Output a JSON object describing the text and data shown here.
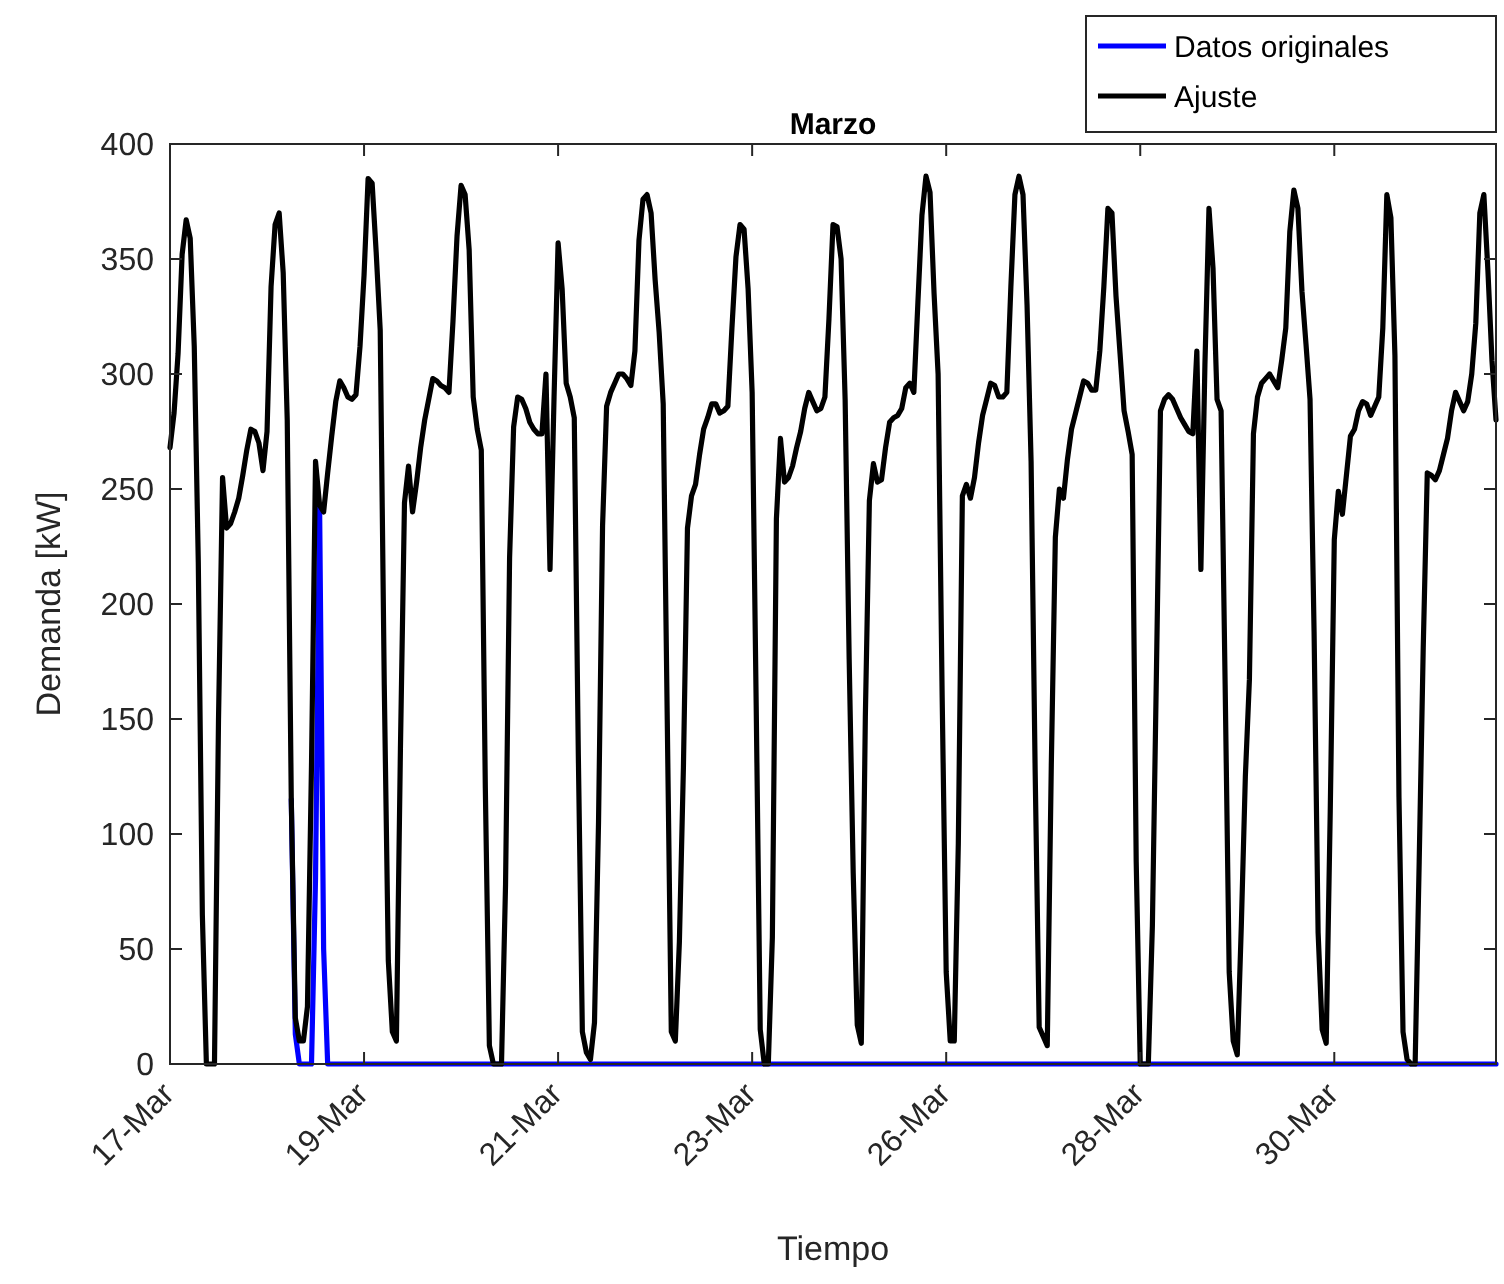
{
  "chart_data": {
    "type": "line",
    "title": "Marzo",
    "xlabel": "Tiempo",
    "ylabel": "Demanda [kW]",
    "ylim": [
      0,
      400
    ],
    "yticks": [
      0,
      50,
      100,
      150,
      200,
      250,
      300,
      350,
      400
    ],
    "grid": false,
    "legend": "top right",
    "line_style": "solid",
    "marker": "none",
    "categories": [
      "17-Mar",
      null,
      null,
      null,
      null,
      null,
      null,
      null,
      null,
      null,
      null,
      null,
      null,
      null,
      null,
      null,
      null,
      null,
      null,
      null,
      null,
      null,
      null,
      null,
      null,
      null,
      null,
      null,
      null,
      null,
      null,
      null,
      null,
      null,
      null,
      null,
      null,
      null,
      null,
      null,
      null,
      null,
      null,
      null,
      null,
      null,
      null,
      null,
      "19-Mar",
      null,
      null,
      null,
      null,
      null,
      null,
      null,
      null,
      null,
      null,
      null,
      null,
      null,
      null,
      null,
      null,
      null,
      null,
      null,
      null,
      null,
      null,
      null,
      null,
      null,
      null,
      null,
      null,
      null,
      null,
      null,
      null,
      null,
      null,
      null,
      null,
      null,
      null,
      null,
      null,
      null,
      null,
      null,
      null,
      null,
      null,
      null,
      "21-Mar",
      null,
      null,
      null,
      null,
      null,
      null,
      null,
      null,
      null,
      null,
      null,
      null,
      null,
      null,
      null,
      null,
      null,
      null,
      null,
      null,
      null,
      null,
      null,
      null,
      null,
      null,
      null,
      null,
      null,
      null,
      null,
      null,
      null,
      null,
      null,
      null,
      null,
      null,
      null,
      null,
      null,
      null,
      null,
      null,
      null,
      null,
      null,
      "23-Mar",
      null,
      null,
      null,
      null,
      null,
      null,
      null,
      null,
      null,
      null,
      null,
      null,
      null,
      null,
      null,
      null,
      null,
      null,
      null,
      null,
      null,
      null,
      null,
      null,
      null,
      null,
      null,
      null,
      null,
      null,
      null,
      null,
      null,
      null,
      null,
      null,
      null,
      null,
      null,
      null,
      null,
      null,
      null,
      null,
      null,
      null,
      null,
      "26-Mar",
      null,
      null,
      null,
      null,
      null,
      null,
      null,
      null,
      null,
      null,
      null,
      null,
      null,
      null,
      null,
      null,
      null,
      null,
      null,
      null,
      null,
      null,
      null,
      null,
      null,
      null,
      null,
      null,
      null,
      null,
      null,
      null,
      null,
      null,
      null,
      null,
      null,
      null,
      null,
      null,
      null,
      null,
      null,
      null,
      null,
      null,
      null,
      "28-Mar",
      null,
      null,
      null,
      null,
      null,
      null,
      null,
      null,
      null,
      null,
      null,
      null,
      null,
      null,
      null,
      null,
      null,
      null,
      null,
      null,
      null,
      null,
      null,
      null,
      null,
      null,
      null,
      null,
      null,
      null,
      null,
      null,
      null,
      null,
      null,
      null,
      null,
      null,
      null,
      null,
      null,
      null,
      null,
      null,
      null,
      null,
      null,
      "30-Mar",
      null,
      null,
      null,
      null,
      null,
      null,
      null,
      null,
      null,
      null,
      null,
      null,
      null,
      null,
      null,
      null,
      null,
      null,
      null,
      null,
      null,
      null,
      null,
      null,
      null,
      null,
      null,
      null,
      null,
      null,
      null,
      null,
      null,
      null,
      null,
      null,
      null,
      null,
      null,
      null
    ],
    "series": [
      {
        "name": "Datos originales",
        "color": "#0000ff",
        "values": [
          null,
          null,
          null,
          null,
          null,
          null,
          null,
          null,
          null,
          null,
          null,
          null,
          null,
          null,
          null,
          null,
          null,
          null,
          null,
          null,
          null,
          null,
          null,
          null,
          null,
          null,
          null,
          null,
          null,
          null,
          115,
          13,
          0,
          0,
          0,
          0,
          81,
          243,
          50,
          0,
          0,
          0,
          0,
          0,
          0,
          0,
          0,
          0,
          0,
          0,
          0,
          0,
          0,
          0,
          0,
          0,
          0,
          0,
          0,
          0,
          0,
          0,
          0,
          0,
          0,
          0,
          0,
          0,
          0,
          0,
          0,
          0,
          0,
          0,
          0,
          0,
          0,
          0,
          0,
          0,
          0,
          0,
          0,
          0,
          0,
          0,
          0,
          0,
          0,
          0,
          0,
          0,
          0,
          0,
          0,
          0,
          0,
          0,
          0,
          0,
          0,
          0,
          0,
          0,
          0,
          0,
          0,
          0,
          0,
          0,
          0,
          0,
          0,
          0,
          0,
          0,
          0,
          0,
          0,
          0,
          0,
          0,
          0,
          0,
          0,
          0,
          0,
          0,
          0,
          0,
          0,
          0,
          0,
          0,
          0,
          0,
          0,
          0,
          0,
          0,
          0,
          0,
          0,
          0,
          0,
          0,
          0,
          0,
          0,
          0,
          0,
          0,
          0,
          0,
          0,
          0,
          0,
          0,
          0,
          0,
          0,
          0,
          0,
          0,
          0,
          0,
          0,
          0,
          0,
          0,
          0,
          0,
          0,
          0,
          0,
          0,
          0,
          0,
          0,
          0,
          0,
          0,
          0,
          0,
          0,
          0,
          0,
          0,
          0,
          0,
          0,
          0,
          0,
          0,
          0,
          0,
          0,
          0,
          0,
          0,
          0,
          0,
          0,
          0,
          0,
          0,
          0,
          0,
          0,
          0,
          0,
          0,
          0,
          0,
          0,
          0,
          0,
          0,
          0,
          0,
          0,
          0,
          0,
          0,
          0,
          0,
          0,
          0,
          0,
          0,
          0,
          0,
          0,
          0,
          0,
          0,
          0,
          0,
          0,
          0,
          0,
          0,
          0,
          0,
          0,
          0,
          0,
          0,
          0,
          0,
          0,
          0,
          0,
          0,
          0,
          0,
          0,
          0,
          0,
          0,
          0,
          0,
          0,
          0,
          0,
          0,
          0,
          0,
          0,
          0,
          0,
          0,
          0,
          0,
          0,
          0,
          0,
          0,
          0,
          0,
          0,
          0,
          0,
          0,
          0,
          0,
          0,
          0,
          0,
          0,
          0,
          0,
          0,
          0,
          0,
          0,
          0,
          0,
          0,
          0,
          0,
          0,
          0,
          0,
          0,
          0,
          0,
          0,
          0,
          0,
          0,
          0,
          0,
          0,
          0,
          0,
          0,
          0,
          0,
          0,
          0,
          0,
          0,
          0,
          0,
          0,
          0,
          0,
          0
        ]
      },
      {
        "name": "Ajuste",
        "color": "#000000",
        "values": [
          268,
          283,
          309,
          352,
          367,
          359,
          312,
          218,
          65,
          0,
          0,
          0,
          150,
          255,
          233,
          235,
          240,
          246,
          256,
          267,
          276,
          275,
          270,
          258,
          275,
          338,
          365,
          370,
          344,
          280,
          115,
          20,
          10,
          10,
          25,
          130,
          262,
          243,
          240,
          257,
          273,
          288,
          297,
          294,
          290,
          289,
          291,
          312,
          343,
          385,
          383,
          353,
          319,
          165,
          45,
          14,
          10,
          137,
          244,
          260,
          240,
          253,
          268,
          280,
          289,
          298,
          297,
          295,
          294,
          292,
          323,
          360,
          382,
          378,
          354,
          290,
          276,
          267,
          120,
          8,
          0,
          0,
          0,
          78,
          220,
          277,
          290,
          289,
          285,
          279,
          276,
          274,
          274,
          300,
          215,
          290,
          357,
          337,
          296,
          290,
          281,
          135,
          14,
          5,
          2,
          18,
          105,
          234,
          286,
          292,
          296,
          300,
          300,
          298,
          295,
          310,
          358,
          376,
          378,
          370,
          341,
          318,
          287,
          150,
          14,
          10,
          53,
          129,
          233,
          247,
          252,
          265,
          276,
          281,
          287,
          287,
          283,
          284,
          286,
          320,
          351,
          365,
          363,
          337,
          292,
          156,
          15,
          0,
          0,
          55,
          237,
          272,
          253,
          255,
          260,
          268,
          275,
          285,
          292,
          288,
          284,
          285,
          290,
          324,
          365,
          364,
          350,
          289,
          176,
          83,
          17,
          9,
          151,
          245,
          261,
          253,
          254,
          268,
          279,
          281,
          282,
          285,
          294,
          296,
          292,
          331,
          369,
          386,
          379,
          335,
          300,
          160,
          40,
          10,
          10,
          96,
          247,
          252,
          246,
          255,
          270,
          282,
          289,
          296,
          295,
          290,
          290,
          292,
          338,
          378,
          386,
          378,
          330,
          262,
          128,
          16,
          12,
          8,
          130,
          229,
          250,
          246,
          263,
          276,
          283,
          290,
          297,
          296,
          293,
          293,
          310,
          338,
          372,
          370,
          334,
          309,
          284,
          275,
          265,
          88,
          0,
          0,
          0,
          60,
          170,
          284,
          289,
          291,
          289,
          285,
          281,
          278,
          275,
          274,
          310,
          215,
          304,
          372,
          346,
          289,
          284,
          165,
          40,
          10,
          4,
          60,
          125,
          167,
          274,
          290,
          296,
          298,
          300,
          297,
          294,
          306,
          320,
          362,
          380,
          372,
          336,
          313,
          289,
          188,
          57,
          15,
          9,
          110,
          228,
          249,
          239,
          256,
          273,
          276,
          284,
          288,
          287,
          282,
          286,
          290,
          320,
          378,
          368,
          308,
          116,
          14,
          2,
          0,
          0,
          88,
          181,
          257,
          256,
          254,
          258,
          265,
          272,
          284,
          292,
          288,
          284,
          288,
          300,
          322,
          370,
          378,
          345,
          306,
          280
        ]
      }
    ]
  }
}
